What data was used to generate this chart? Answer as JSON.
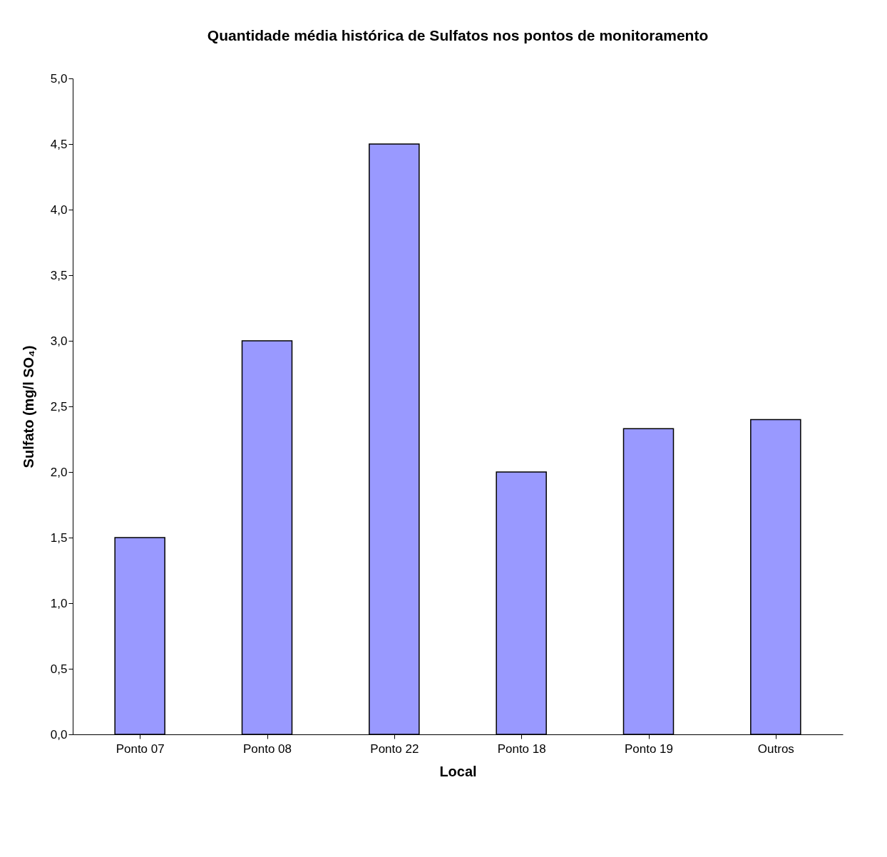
{
  "chart_data": {
    "type": "bar",
    "title": "Quantidade média histórica de Sulfatos nos pontos de monitoramento",
    "xlabel": "Local",
    "ylabel": "Sulfato (mg/l SO₄)",
    "categories": [
      "Ponto 07",
      "Ponto 08",
      "Ponto 22",
      "Ponto 18",
      "Ponto 19",
      "Outros"
    ],
    "values": [
      1.5,
      3.0,
      4.5,
      2.0,
      2.33,
      2.4
    ],
    "color": "#9999ff",
    "ylim": [
      0,
      5
    ],
    "yticks": [
      {
        "value": 0,
        "label": "0,0"
      },
      {
        "value": 0.5,
        "label": "0,5"
      },
      {
        "value": 1,
        "label": "1,0"
      },
      {
        "value": 1.5,
        "label": "1,5"
      },
      {
        "value": 2,
        "label": "2,0"
      },
      {
        "value": 2.5,
        "label": "2,5"
      },
      {
        "value": 3,
        "label": "3,0"
      },
      {
        "value": 3.5,
        "label": "3,5"
      },
      {
        "value": 4,
        "label": "4,0"
      },
      {
        "value": 4.5,
        "label": "4,5"
      },
      {
        "value": 5,
        "label": "5,0"
      }
    ],
    "grid": false
  }
}
